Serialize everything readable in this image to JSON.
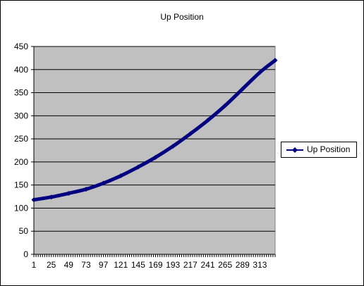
{
  "chart_data": {
    "type": "line",
    "title": "Up Position",
    "xlabel": "",
    "ylabel": "",
    "ylim": [
      0,
      450
    ],
    "yticks": [
      0,
      50,
      100,
      150,
      200,
      250,
      300,
      350,
      400,
      450
    ],
    "xrange": [
      1,
      334
    ],
    "xticks": [
      1,
      25,
      49,
      73,
      97,
      121,
      145,
      169,
      193,
      217,
      241,
      265,
      289,
      313
    ],
    "grid": "horizontal",
    "legend_position": "right",
    "plot_background": "#c0c0c0",
    "series": [
      {
        "name": "Up Position",
        "color": "#000080",
        "x": [
          1,
          25,
          49,
          73,
          97,
          121,
          145,
          169,
          193,
          217,
          241,
          265,
          289,
          313,
          334
        ],
        "y": [
          118,
          124,
          132,
          141,
          154,
          170,
          189,
          210,
          234,
          261,
          290,
          322,
          358,
          394,
          420
        ]
      }
    ]
  }
}
